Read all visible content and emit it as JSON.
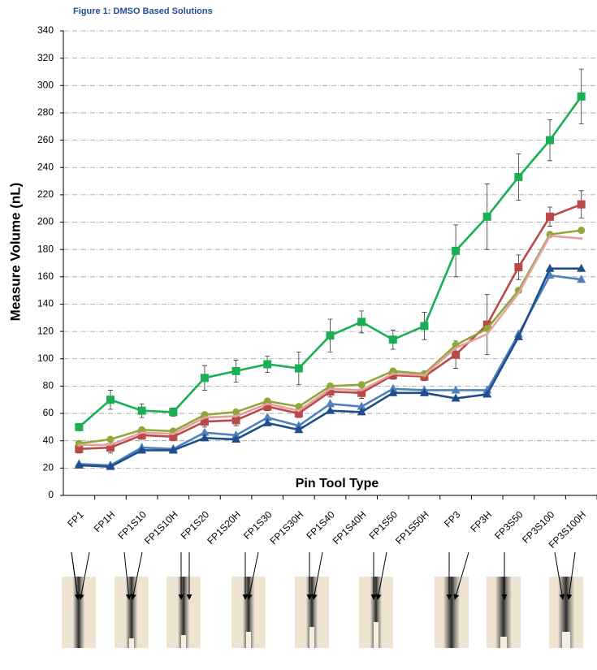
{
  "chart_data": {
    "type": "line",
    "title": "Figure 1:  DMSO Based Solutions",
    "x_label": "Pin Tool Type",
    "y_label": "Measure Volume (nL)",
    "categories": [
      "FP1",
      "FP1H",
      "FP1S10",
      "FP1S10H",
      "FP1S20",
      "FP1S20H",
      "FP1S30",
      "FP1S30H",
      "FP1S40",
      "FP1S40H",
      "FP1S50",
      "FP1S50H",
      "FP3",
      "FP3H",
      "FP3S50",
      "FP3S100",
      "FP3S100H"
    ],
    "series": [
      {
        "color": "#1aaf54",
        "marker": "square",
        "values": [
          50,
          70,
          62,
          61,
          86,
          91,
          96,
          93,
          117,
          127,
          114,
          124,
          179,
          204,
          233,
          260,
          292
        ],
        "errors": [
          0,
          7,
          5,
          3,
          9,
          8,
          6,
          12,
          12,
          8,
          7,
          10,
          19,
          24,
          17,
          15,
          20
        ]
      },
      {
        "color": "#b94a48",
        "marker": "square",
        "values": [
          34,
          35,
          44,
          43,
          54,
          55,
          65,
          60,
          76,
          75,
          88,
          87,
          103,
          125,
          167,
          204,
          213
        ],
        "errors": [
          3,
          4,
          3,
          3,
          4,
          4,
          3,
          3,
          4,
          4,
          3,
          3,
          10,
          22,
          9,
          7,
          10
        ]
      },
      {
        "color": "#8ea83c",
        "marker": "circle",
        "values": [
          38,
          41,
          48,
          47,
          59,
          61,
          69,
          65,
          80,
          81,
          91,
          89,
          110,
          122,
          150,
          191,
          194
        ]
      },
      {
        "color": "#e6a0a0",
        "marker": "none",
        "values": [
          37,
          37,
          46,
          45,
          57,
          58,
          67,
          62,
          78,
          77,
          89,
          88,
          108,
          118,
          148,
          190,
          188
        ]
      },
      {
        "color": "#4f81bd",
        "marker": "triangle",
        "values": [
          23,
          22,
          35,
          34,
          46,
          44,
          57,
          51,
          67,
          65,
          78,
          77,
          77,
          77,
          118,
          161,
          158
        ]
      },
      {
        "color": "#1f4e8c",
        "marker": "triangle",
        "values": [
          22,
          21,
          33,
          33,
          42,
          41,
          53,
          48,
          62,
          61,
          75,
          75,
          71,
          74,
          116,
          166,
          166
        ]
      }
    ],
    "ylim": [
      0,
      340
    ],
    "yticks": [
      0,
      20,
      40,
      60,
      80,
      100,
      120,
      140,
      160,
      180,
      200,
      220,
      240,
      260,
      280,
      300,
      320,
      340
    ],
    "grid": true
  }
}
